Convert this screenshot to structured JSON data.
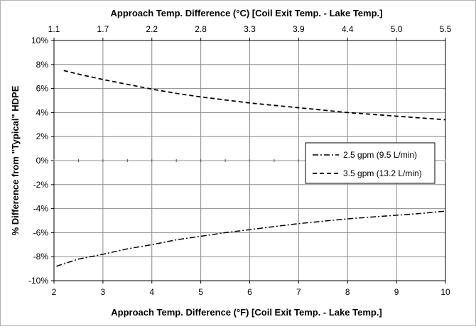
{
  "chart_data": {
    "type": "line",
    "xlabel": "Approach Temp. Difference (°F) [Coil Exit Temp. - Lake Temp.]",
    "x2label": "Approach Temp. Difference (°C) [Coil Exit Temp. - Lake Temp.]",
    "ylabel": "% Difference from \"Typical\" HDPE",
    "xlim": [
      2,
      10
    ],
    "ylim": [
      -10,
      10
    ],
    "x_ticks": [
      "2",
      "3",
      "4",
      "5",
      "6",
      "7",
      "8",
      "9",
      "10"
    ],
    "x2_ticks": [
      "1.1",
      "1.7",
      "2.2",
      "2.8",
      "3.3",
      "3.9",
      "4.4",
      "5.0",
      "5.5"
    ],
    "y_ticks": [
      "-10%",
      "-8%",
      "-6%",
      "-4%",
      "-2%",
      "0%",
      "2%",
      "4%",
      "6%",
      "8%",
      "10%"
    ],
    "grid": true,
    "legend_position": "right-middle",
    "series": [
      {
        "name": "2.5 gpm (9.5 L/min)",
        "style": "dash-dot",
        "x": [
          2.05,
          2.5,
          3,
          3.5,
          4,
          4.5,
          5,
          5.5,
          6,
          6.5,
          7,
          7.5,
          8,
          8.5,
          9,
          9.5,
          10
        ],
        "y": [
          -8.8,
          -8.2,
          -7.8,
          -7.35,
          -7.0,
          -6.6,
          -6.3,
          -6.0,
          -5.75,
          -5.5,
          -5.25,
          -5.05,
          -4.85,
          -4.7,
          -4.55,
          -4.4,
          -4.2
        ]
      },
      {
        "name": "3.5 gpm (13.2 L/min)",
        "style": "dashed",
        "x": [
          2.2,
          2.5,
          3,
          3.5,
          4,
          4.5,
          5,
          5.5,
          6,
          6.5,
          7,
          7.5,
          8,
          8.5,
          9,
          9.5,
          10
        ],
        "y": [
          7.5,
          7.2,
          6.75,
          6.35,
          5.95,
          5.6,
          5.3,
          5.05,
          4.8,
          4.6,
          4.4,
          4.2,
          4.0,
          3.85,
          3.7,
          3.55,
          3.4
        ]
      }
    ]
  }
}
